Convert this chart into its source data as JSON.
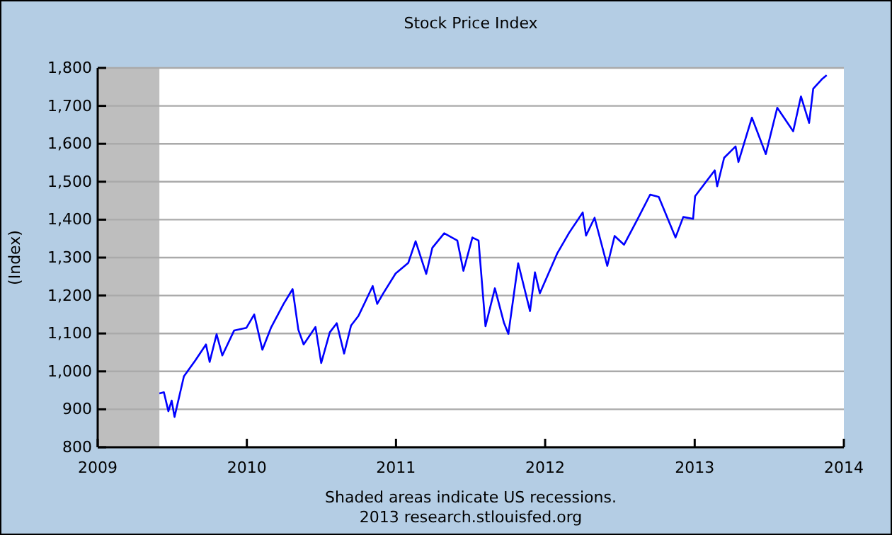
{
  "chart_data": {
    "type": "line",
    "title": "Stock Price Index",
    "ylabel": "(Index)",
    "annotations": [
      "Shaded areas indicate US recessions.",
      "2013 research.stlouisfed.org"
    ],
    "xlim": [
      "2009-01-01",
      "2014-01-01"
    ],
    "xticks": [
      "2009",
      "2010",
      "2011",
      "2012",
      "2013",
      "2014"
    ],
    "ylim": [
      800,
      1800
    ],
    "yticks": [
      800,
      900,
      {
        "value": 1000,
        "label": "1,000"
      },
      {
        "value": 1100,
        "label": "1,100"
      },
      {
        "value": 1200,
        "label": "1,200"
      },
      {
        "value": 1300,
        "label": "1,300"
      },
      {
        "value": 1400,
        "label": "1,400"
      },
      {
        "value": 1500,
        "label": "1,500"
      },
      {
        "value": 1600,
        "label": "1,600"
      },
      {
        "value": 1700,
        "label": "1,700"
      },
      {
        "value": 1800,
        "label": "1,800"
      }
    ],
    "grid": "y",
    "marker": "none",
    "line_style": "solid",
    "bands": [
      {
        "axis": "x",
        "from": "2009-01-01",
        "to": "2009-06-01",
        "color": "#bebebe"
      }
    ],
    "x": [
      "2009-06-01",
      "2009-06-12",
      "2009-06-23",
      "2009-07-01",
      "2009-07-08",
      "2009-07-31",
      "2009-08-28",
      "2009-09-23",
      "2009-10-02",
      "2009-10-19",
      "2009-11-02",
      "2009-12-01",
      "2009-12-31",
      "2010-01-19",
      "2010-02-08",
      "2010-03-01",
      "2010-04-01",
      "2010-04-23",
      "2010-05-07",
      "2010-05-20",
      "2010-06-18",
      "2010-07-02",
      "2010-07-23",
      "2010-08-09",
      "2010-08-27",
      "2010-09-13",
      "2010-10-01",
      "2010-11-05",
      "2010-11-16",
      "2010-12-01",
      "2010-12-31",
      "2011-01-31",
      "2011-02-18",
      "2011-03-16",
      "2011-03-31",
      "2011-04-29",
      "2011-05-31",
      "2011-06-15",
      "2011-07-07",
      "2011-07-22",
      "2011-08-08",
      "2011-08-31",
      "2011-09-22",
      "2011-10-03",
      "2011-10-27",
      "2011-11-25",
      "2011-12-07",
      "2011-12-19",
      "2012-01-31",
      "2012-02-29",
      "2012-04-02",
      "2012-04-10",
      "2012-05-01",
      "2012-06-01",
      "2012-06-19",
      "2012-07-12",
      "2012-08-16",
      "2012-09-14",
      "2012-10-05",
      "2012-11-15",
      "2012-12-04",
      "2012-12-28",
      "2013-01-02",
      "2013-02-19",
      "2013-02-25",
      "2013-03-14",
      "2013-04-11",
      "2013-04-18",
      "2013-05-21",
      "2013-06-24",
      "2013-07-22",
      "2013-08-30",
      "2013-09-18",
      "2013-10-08",
      "2013-10-18",
      "2013-11-08",
      "2013-11-20"
    ],
    "series": [
      {
        "color": "#0000ff",
        "values": [
          942,
          945,
          895,
          923,
          880,
          987,
          1029,
          1071,
          1025,
          1098,
          1042,
          1108,
          1115,
          1150,
          1057,
          1115,
          1178,
          1217,
          1110,
          1071,
          1117,
          1022,
          1103,
          1127,
          1047,
          1121,
          1146,
          1225,
          1178,
          1206,
          1258,
          1286,
          1343,
          1257,
          1326,
          1364,
          1345,
          1265,
          1353,
          1345,
          1119,
          1219,
          1129,
          1099,
          1285,
          1159,
          1261,
          1206,
          1312,
          1366,
          1419,
          1358,
          1405,
          1278,
          1357,
          1334,
          1405,
          1466,
          1460,
          1353,
          1407,
          1402,
          1462,
          1530,
          1488,
          1563,
          1593,
          1552,
          1669,
          1573,
          1695,
          1633,
          1725,
          1655,
          1745,
          1770,
          1781
        ]
      }
    ]
  }
}
